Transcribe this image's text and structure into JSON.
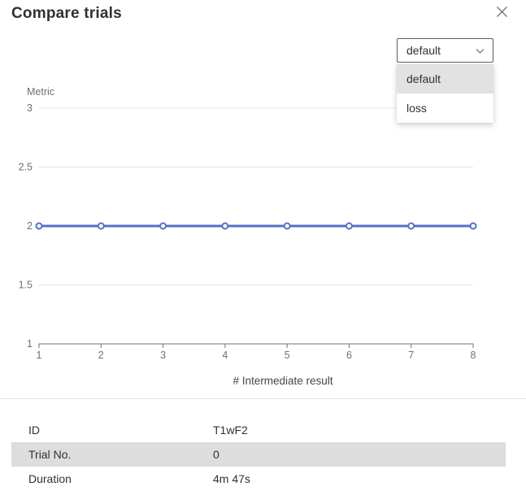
{
  "header": {
    "title": "Compare trials"
  },
  "icons": {
    "close": "close-icon",
    "chevron_down": "chevron-down-icon"
  },
  "metric_select": {
    "value": "default",
    "options": [
      "default",
      "loss"
    ],
    "highlighted_option": "default"
  },
  "chart_data": {
    "type": "line",
    "title": "",
    "ylabel": "Metric",
    "xlabel": "# Intermediate result",
    "x": [
      1,
      2,
      3,
      4,
      5,
      6,
      7,
      8
    ],
    "series": [
      {
        "name": "default",
        "values": [
          2,
          2,
          2,
          2,
          2,
          2,
          2,
          2
        ]
      }
    ],
    "xlim": [
      1,
      8
    ],
    "ylim": [
      1,
      3
    ],
    "yticks": [
      1,
      1.5,
      2,
      2.5,
      3
    ],
    "grid": true,
    "legend_position": "none",
    "line_color": "#5470c6",
    "grid_color": "#e0e6f1",
    "axis_color": "#6e7079",
    "xlabel_color": "#46464a"
  },
  "details_table": {
    "rows": [
      {
        "label": "ID",
        "value": "T1wF2"
      },
      {
        "label": "Trial No.",
        "value": "0"
      },
      {
        "label": "Duration",
        "value": "4m 47s"
      }
    ]
  }
}
